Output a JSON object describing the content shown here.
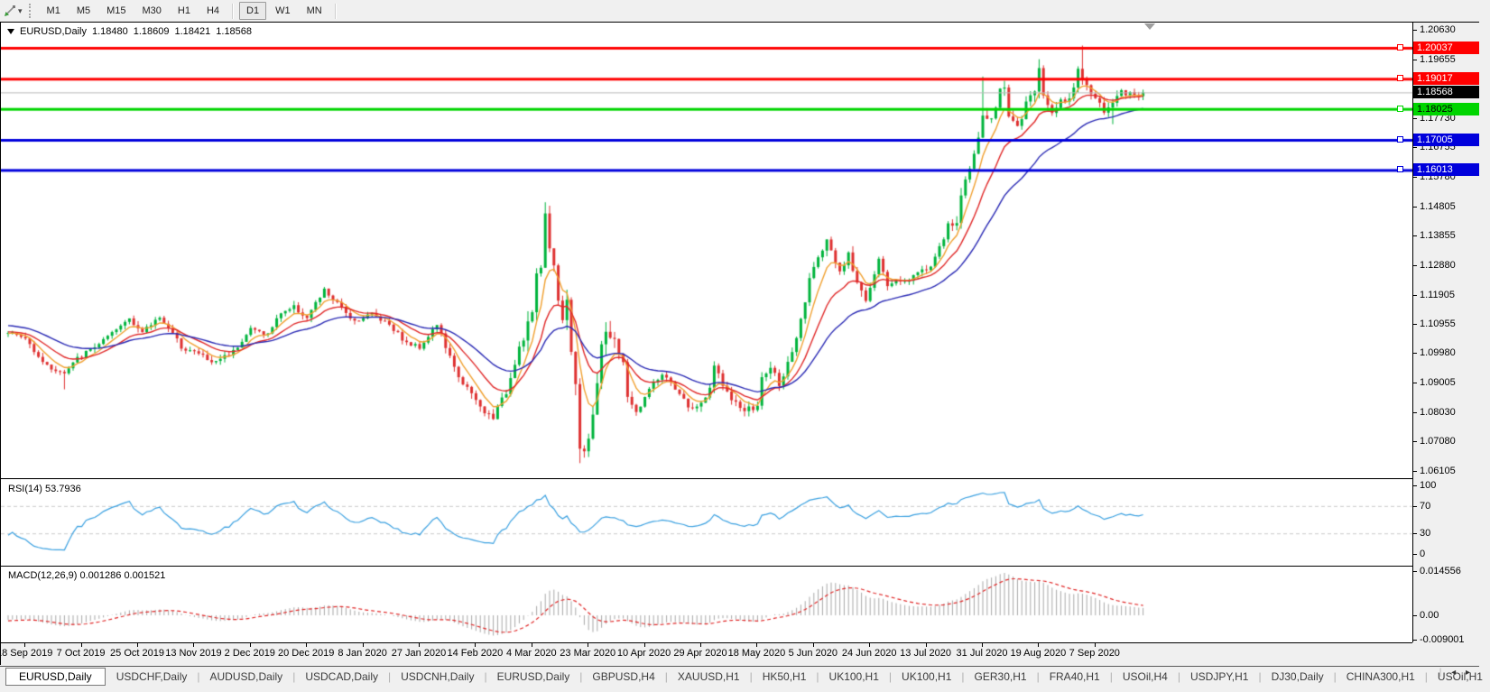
{
  "toolbar": {
    "timeframes": [
      "M1",
      "M5",
      "M15",
      "M30",
      "H1",
      "H4",
      "D1",
      "W1",
      "MN"
    ],
    "active_timeframe": "D1",
    "tool_icon": "chart-cursor-icon"
  },
  "chart_title": {
    "symbol": "EURUSD,Daily",
    "open": "1.18480",
    "high": "1.18609",
    "low": "1.18421",
    "close": "1.18568"
  },
  "chart_data": {
    "type": "candlestick",
    "symbol": "EURUSD",
    "timeframe": "Daily",
    "current_price": {
      "label": "1.18568",
      "value": 1.18568,
      "bg": "#000000",
      "fg": "#FFFFFF",
      "line_color": "#BBBBBB"
    },
    "y_axis": {
      "ticks": [
        {
          "label": "1.20630",
          "value": 1.2063
        },
        {
          "label": "1.19655",
          "value": 1.19655
        },
        {
          "label": "1.17730",
          "value": 1.1773
        },
        {
          "label": "1.16755",
          "value": 1.16755
        },
        {
          "label": "1.15780",
          "value": 1.1578
        },
        {
          "label": "1.14805",
          "value": 1.14805
        },
        {
          "label": "1.13855",
          "value": 1.13855
        },
        {
          "label": "1.12880",
          "value": 1.1288
        },
        {
          "label": "1.11905",
          "value": 1.11905
        },
        {
          "label": "1.10955",
          "value": 1.10955
        },
        {
          "label": "1.09980",
          "value": 1.0998
        },
        {
          "label": "1.09005",
          "value": 1.09005
        },
        {
          "label": "1.08030",
          "value": 1.0803
        },
        {
          "label": "1.07080",
          "value": 1.0708
        },
        {
          "label": "1.06105",
          "value": 1.06105
        }
      ]
    },
    "x_axis": {
      "dates": [
        "18 Sep 2019",
        "7 Oct 2019",
        "25 Oct 2019",
        "13 Nov 2019",
        "2 Dec 2019",
        "20 Dec 2019",
        "8 Jan 2020",
        "27 Jan 2020",
        "14 Feb 2020",
        "4 Mar 2020",
        "23 Mar 2020",
        "10 Apr 2020",
        "29 Apr 2020",
        "18 May 2020",
        "5 Jun 2020",
        "24 Jun 2020",
        "13 Jul 2020",
        "31 Jul 2020",
        "19 Aug 2020",
        "7 Sep 2020"
      ]
    },
    "levels": [
      {
        "label": "1.20037",
        "value": 1.20037,
        "color": "#FF0000",
        "fg": "#FFFFFF"
      },
      {
        "label": "1.19017",
        "value": 1.19017,
        "color": "#FF0000",
        "fg": "#FFFFFF"
      },
      {
        "label": "1.18025",
        "value": 1.18025,
        "color": "#00D500",
        "fg": "#000000"
      },
      {
        "label": "1.17005",
        "value": 1.17005,
        "color": "#0000DC",
        "fg": "#FFFFFF"
      },
      {
        "label": "1.16013",
        "value": 1.16013,
        "color": "#0000DC",
        "fg": "#FFFFFF"
      }
    ],
    "candles": {
      "bars": 263,
      "up_color": "#00B43C",
      "down_color": "#DE3030",
      "final_close": 1.18568,
      "close_anchors": [
        [
          -60,
          1.124
        ],
        [
          -45,
          1.119
        ],
        [
          -30,
          1.114
        ],
        [
          -18,
          1.1095
        ],
        [
          -8,
          1.106
        ],
        [
          0,
          1.107
        ],
        [
          4,
          1.1045
        ],
        [
          9,
          1.0955
        ],
        [
          13,
          1.093
        ],
        [
          16,
          1.098
        ],
        [
          21,
          1.103
        ],
        [
          24,
          1.106
        ],
        [
          28,
          1.1115
        ],
        [
          31,
          1.1065
        ],
        [
          35,
          1.112
        ],
        [
          40,
          1.102
        ],
        [
          45,
          1.099
        ],
        [
          47,
          1.0965
        ],
        [
          52,
          1.1005
        ],
        [
          56,
          1.1078
        ],
        [
          60,
          1.106
        ],
        [
          63,
          1.1133
        ],
        [
          66,
          1.115
        ],
        [
          69,
          1.1115
        ],
        [
          73,
          1.1205
        ],
        [
          76,
          1.116
        ],
        [
          80,
          1.1105
        ],
        [
          84,
          1.1128
        ],
        [
          88,
          1.1095
        ],
        [
          92,
          1.103
        ],
        [
          95,
          1.1019
        ],
        [
          99,
          1.1093
        ],
        [
          103,
          1.0946
        ],
        [
          107,
          1.086
        ],
        [
          110,
          1.08
        ],
        [
          112,
          1.079
        ],
        [
          115,
          1.087
        ],
        [
          118,
          1.102
        ],
        [
          121,
          1.1135
        ],
        [
          122,
          1.124
        ],
        [
          123,
          1.1285
        ],
        [
          124,
          1.1456
        ],
        [
          126,
          1.1271
        ],
        [
          127,
          1.1184
        ],
        [
          128,
          1.1109
        ],
        [
          129,
          1.118
        ],
        [
          130,
          1.0995
        ],
        [
          131,
          1.0915
        ],
        [
          132,
          1.0693
        ],
        [
          133,
          1.0688
        ],
        [
          134,
          1.0724
        ],
        [
          135,
          1.0789
        ],
        [
          136,
          1.088
        ],
        [
          137,
          1.103
        ],
        [
          138,
          1.108
        ],
        [
          140,
          1.1031
        ],
        [
          142,
          1.0961
        ],
        [
          143,
          1.086
        ],
        [
          145,
          1.08
        ],
        [
          148,
          1.088
        ],
        [
          151,
          1.093
        ],
        [
          154,
          1.0875
        ],
        [
          157,
          1.0825
        ],
        [
          159,
          1.0815
        ],
        [
          162,
          1.0875
        ],
        [
          163,
          1.0955
        ],
        [
          165,
          1.09
        ],
        [
          167,
          1.084
        ],
        [
          170,
          1.081
        ],
        [
          173,
          1.082
        ],
        [
          174,
          1.0916
        ],
        [
          176,
          1.095
        ],
        [
          178,
          1.0901
        ],
        [
          181,
          1.099
        ],
        [
          183,
          1.1101
        ],
        [
          185,
          1.1234
        ],
        [
          186,
          1.129
        ],
        [
          189,
          1.1373
        ],
        [
          191,
          1.1298
        ],
        [
          192,
          1.1256
        ],
        [
          194,
          1.1323
        ],
        [
          195,
          1.1264
        ],
        [
          198,
          1.118
        ],
        [
          201,
          1.1308
        ],
        [
          203,
          1.122
        ],
        [
          205,
          1.1242
        ],
        [
          207,
          1.1234
        ],
        [
          209,
          1.125
        ],
        [
          211,
          1.1274
        ],
        [
          213,
          1.1284
        ],
        [
          215,
          1.1344
        ],
        [
          217,
          1.1412
        ],
        [
          219,
          1.1427
        ],
        [
          220,
          1.1527
        ],
        [
          221,
          1.157
        ],
        [
          222,
          1.1596
        ],
        [
          223,
          1.1656
        ],
        [
          224,
          1.1715
        ],
        [
          225,
          1.1778
        ],
        [
          227,
          1.1762
        ],
        [
          229,
          1.1866
        ],
        [
          230,
          1.1877
        ],
        [
          231,
          1.1787
        ],
        [
          233,
          1.1738
        ],
        [
          235,
          1.1813
        ],
        [
          237,
          1.187
        ],
        [
          238,
          1.1933
        ],
        [
          239,
          1.1839
        ],
        [
          241,
          1.1797
        ],
        [
          243,
          1.1834
        ],
        [
          245,
          1.183
        ],
        [
          247,
          1.1936
        ],
        [
          248,
          1.1911
        ],
        [
          250,
          1.1853
        ],
        [
          251,
          1.1841
        ],
        [
          252,
          1.1815
        ],
        [
          253,
          1.1781
        ],
        [
          254,
          1.1801
        ],
        [
          255,
          1.1814
        ],
        [
          256,
          1.1845
        ],
        [
          257,
          1.1865
        ],
        [
          258,
          1.1847
        ],
        [
          259,
          1.186
        ],
        [
          260,
          1.185
        ],
        [
          261,
          1.1842
        ],
        [
          262,
          1.18568
        ]
      ],
      "volatility": [
        [
          -60,
          99,
          0.0032
        ],
        [
          100,
          118,
          0.0042
        ],
        [
          119,
          140,
          0.0085
        ],
        [
          141,
          175,
          0.0042
        ],
        [
          176,
          199,
          0.0048
        ],
        [
          200,
          215,
          0.0032
        ],
        [
          216,
          240,
          0.0055
        ],
        [
          241,
          262,
          0.0045
        ]
      ],
      "wick_overrides": {
        "13": {
          "l": 1.0879
        },
        "112": {
          "l": 1.0778
        },
        "124": {
          "h": 1.1495
        },
        "132": {
          "l": 1.0636
        },
        "225": {
          "h": 1.1909
        },
        "238": {
          "h": 1.1966
        },
        "248": {
          "h": 1.2011
        },
        "255": {
          "l": 1.1752
        }
      }
    },
    "moving_averages": [
      {
        "period": 6,
        "type": "ema",
        "color": "#F0A030"
      },
      {
        "period": 14,
        "type": "ema",
        "color": "#E02828"
      },
      {
        "period": 30,
        "type": "ema",
        "color": "#2A2AB4"
      }
    ],
    "rsi": {
      "label": "RSI(14)",
      "value": "53.7936",
      "period": 14,
      "color": "#3AA0E0",
      "axis_labels": [
        "100",
        "70",
        "30",
        "0"
      ],
      "guide_levels": [
        70,
        30
      ],
      "guide_color": "#C9C9C9"
    },
    "macd": {
      "label": "MACD(12,26,9)",
      "value_main": "0.001286",
      "value_signal": "0.001521",
      "fast": 12,
      "slow": 26,
      "signal": 9,
      "axis_labels": [
        "0.014556",
        "0.00",
        "-0.009001"
      ],
      "histogram_color": "#A8A8A8",
      "signal_color": "#E02828"
    }
  },
  "tabs": {
    "items": [
      "EURUSD,Daily",
      "USDCHF,Daily",
      "AUDUSD,Daily",
      "USDCAD,Daily",
      "USDCNH,Daily",
      "EURUSD,Daily",
      "GBPUSD,H4",
      "XAUUSD,H1",
      "HK50,H1",
      "UK100,H1",
      "UK100,H1",
      "GER30,H1",
      "FRA40,H1",
      "USOil,H4",
      "USDJPY,H1",
      "DJ30,Daily",
      "CHINA300,H1",
      "USOil,H1"
    ],
    "active_index": 0,
    "scroll_left_icon": "◂",
    "scroll_right_icon": "▸"
  }
}
